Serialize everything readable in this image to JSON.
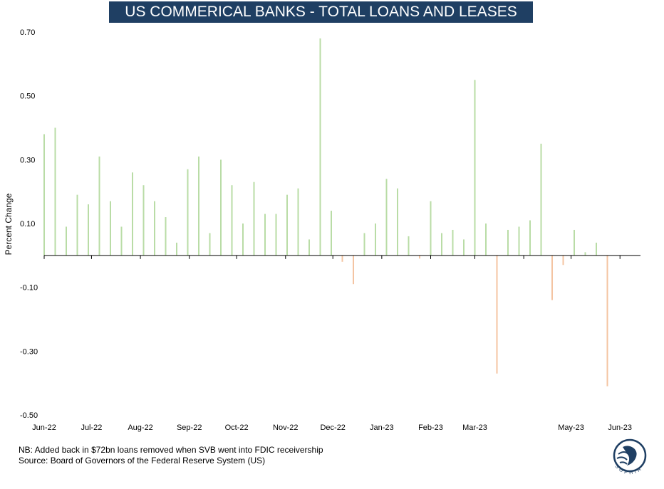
{
  "chart_data": {
    "type": "bar",
    "title": "US COMMERICAL BANKS - TOTAL LOANS AND LEASES",
    "ylabel": "Percent Change",
    "xlabel": "",
    "ylim": [
      -0.5,
      0.7
    ],
    "yticks": [
      0.7,
      0.5,
      0.3,
      0.1,
      -0.1,
      -0.3,
      -0.5
    ],
    "ytick_labels": [
      "0.70",
      "0.50",
      "0.30",
      "0.10",
      "-0.10",
      "-0.30",
      "-0.50"
    ],
    "x_range": [
      "2022-06-01",
      "2023-06-14"
    ],
    "month_labels": [
      {
        "date": "2022-06-01",
        "label": "Jun-22"
      },
      {
        "date": "2022-07-01",
        "label": "Jul-22"
      },
      {
        "date": "2022-08-01",
        "label": "Aug-22"
      },
      {
        "date": "2022-09-01",
        "label": "Sep-22"
      },
      {
        "date": "2022-10-01",
        "label": "Oct-22"
      },
      {
        "date": "2022-11-01",
        "label": "Nov-22"
      },
      {
        "date": "2022-12-01",
        "label": "Dec-22"
      },
      {
        "date": "2023-01-01",
        "label": "Jan-23"
      },
      {
        "date": "2023-02-01",
        "label": "Feb-23"
      },
      {
        "date": "2023-03-01",
        "label": "Mar-23"
      },
      {
        "date": "2023-04-01",
        "label": ""
      },
      {
        "date": "2023-05-01",
        "label": "May-23"
      },
      {
        "date": "2023-06-01",
        "label": "Jun-23"
      }
    ],
    "grid": false,
    "legend": "none",
    "positive_color": "#b9dca6",
    "negative_color": "#f4c4a2",
    "points": [
      {
        "date": "2022-06-01",
        "value": 0.38
      },
      {
        "date": "2022-06-08",
        "value": 0.4
      },
      {
        "date": "2022-06-15",
        "value": 0.09
      },
      {
        "date": "2022-06-22",
        "value": 0.19
      },
      {
        "date": "2022-06-29",
        "value": 0.16
      },
      {
        "date": "2022-07-06",
        "value": 0.31
      },
      {
        "date": "2022-07-13",
        "value": 0.17
      },
      {
        "date": "2022-07-20",
        "value": 0.09
      },
      {
        "date": "2022-07-27",
        "value": 0.26
      },
      {
        "date": "2022-08-03",
        "value": 0.22
      },
      {
        "date": "2022-08-10",
        "value": 0.17
      },
      {
        "date": "2022-08-17",
        "value": 0.12
      },
      {
        "date": "2022-08-24",
        "value": 0.04
      },
      {
        "date": "2022-08-31",
        "value": 0.27
      },
      {
        "date": "2022-09-07",
        "value": 0.31
      },
      {
        "date": "2022-09-14",
        "value": 0.07
      },
      {
        "date": "2022-09-21",
        "value": 0.3
      },
      {
        "date": "2022-09-28",
        "value": 0.22
      },
      {
        "date": "2022-10-05",
        "value": 0.1
      },
      {
        "date": "2022-10-12",
        "value": 0.23
      },
      {
        "date": "2022-10-19",
        "value": 0.13
      },
      {
        "date": "2022-10-26",
        "value": 0.13
      },
      {
        "date": "2022-11-02",
        "value": 0.19
      },
      {
        "date": "2022-11-09",
        "value": 0.21
      },
      {
        "date": "2022-11-16",
        "value": 0.05
      },
      {
        "date": "2022-11-23",
        "value": 0.68
      },
      {
        "date": "2022-11-30",
        "value": 0.14
      },
      {
        "date": "2022-12-07",
        "value": -0.02
      },
      {
        "date": "2022-12-14",
        "value": -0.09
      },
      {
        "date": "2022-12-21",
        "value": 0.07
      },
      {
        "date": "2022-12-28",
        "value": 0.1
      },
      {
        "date": "2023-01-04",
        "value": 0.24
      },
      {
        "date": "2023-01-11",
        "value": 0.21
      },
      {
        "date": "2023-01-18",
        "value": 0.06
      },
      {
        "date": "2023-01-25",
        "value": -0.01
      },
      {
        "date": "2023-02-01",
        "value": 0.17
      },
      {
        "date": "2023-02-08",
        "value": 0.07
      },
      {
        "date": "2023-02-15",
        "value": 0.08
      },
      {
        "date": "2023-02-22",
        "value": 0.05
      },
      {
        "date": "2023-03-01",
        "value": 0.55
      },
      {
        "date": "2023-03-08",
        "value": 0.1
      },
      {
        "date": "2023-03-15",
        "value": -0.37
      },
      {
        "date": "2023-03-22",
        "value": 0.08
      },
      {
        "date": "2023-03-29",
        "value": 0.09
      },
      {
        "date": "2023-04-05",
        "value": 0.11
      },
      {
        "date": "2023-04-12",
        "value": 0.35
      },
      {
        "date": "2023-04-19",
        "value": -0.14
      },
      {
        "date": "2023-04-26",
        "value": -0.03
      },
      {
        "date": "2023-05-03",
        "value": 0.08
      },
      {
        "date": "2023-05-10",
        "value": 0.01
      },
      {
        "date": "2023-05-17",
        "value": 0.04
      },
      {
        "date": "2023-05-24",
        "value": -0.41
      }
    ]
  },
  "notes": {
    "line1": "NB: Added back in $72bn loans removed when SVB went into FDIC receivership",
    "line2": "Source: Board of Governors of the Federal Reserve System (US)"
  },
  "logo": {
    "text": "SOPHIA",
    "icon": "sophia-logo-icon"
  }
}
